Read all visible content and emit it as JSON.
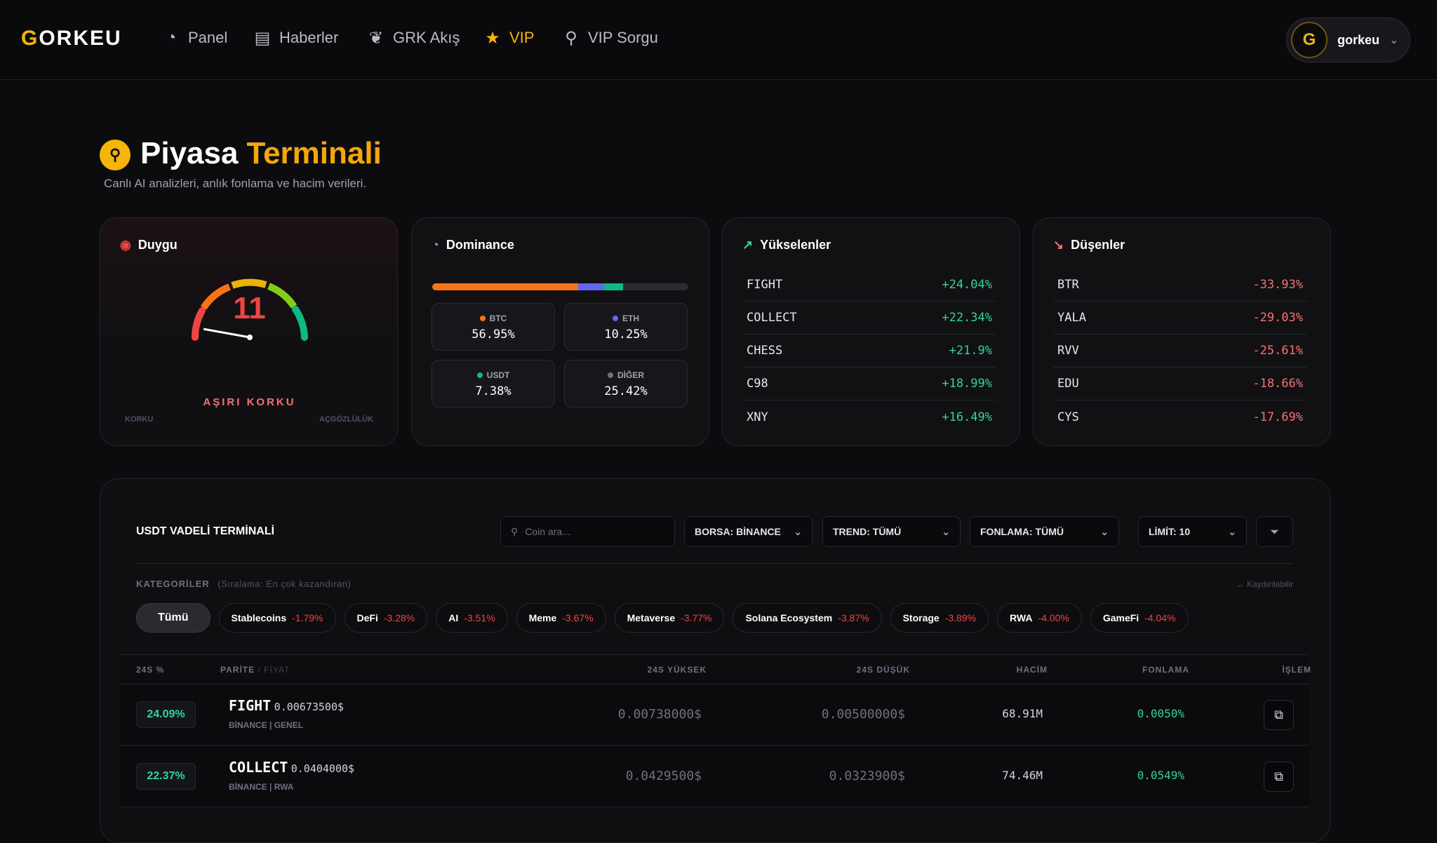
{
  "header": {
    "logo": "GORKEU",
    "nav": [
      {
        "label": "Panel",
        "icon": "pie-chart-icon"
      },
      {
        "label": "Haberler",
        "icon": "newspaper-icon"
      },
      {
        "label": "GRK Akış",
        "icon": "feather-icon"
      },
      {
        "label": "VIP",
        "icon": "star-icon"
      },
      {
        "label": "VIP Sorgu",
        "icon": "search-icon"
      }
    ],
    "user": "gorkeu"
  },
  "page": {
    "title": "Piyasa",
    "title_highlight": "Terminali",
    "subtitle": "Canlı AI analizleri, anlık fonlama ve hacim verileri."
  },
  "sentiment": {
    "title": "Duygu",
    "value": "11",
    "fraction": 0.11,
    "label": "AŞIRI KORKU",
    "min_label": "KORKU",
    "max_label": "AÇGÖZLÜLÜK"
  },
  "dominance": {
    "title": "Dominance",
    "items": [
      {
        "label": "BTC",
        "value": "56.95%",
        "pct": 56.95,
        "color": "#f97316"
      },
      {
        "label": "ETH",
        "value": "10.25%",
        "pct": 10.25,
        "color": "#6366f1"
      },
      {
        "label": "USDT",
        "value": "7.38%",
        "pct": 7.38,
        "color": "#10b981"
      },
      {
        "label": "DİĞER",
        "value": "25.42%",
        "pct": 25.42,
        "color": "#6b7280"
      }
    ]
  },
  "gainers": {
    "title": "Yükselenler",
    "items": [
      {
        "s": "FIGHT",
        "v": "+24.04%"
      },
      {
        "s": "COLLECT",
        "v": "+22.34%"
      },
      {
        "s": "CHESS",
        "v": "+21.9%"
      },
      {
        "s": "C98",
        "v": "+18.99%"
      },
      {
        "s": "XNY",
        "v": "+16.49%"
      }
    ]
  },
  "losers": {
    "title": "Düşenler",
    "items": [
      {
        "s": "BTR",
        "v": "-33.93%"
      },
      {
        "s": "YALA",
        "v": "-29.03%"
      },
      {
        "s": "RVV",
        "v": "-25.61%"
      },
      {
        "s": "EDU",
        "v": "-18.66%"
      },
      {
        "s": "CYS",
        "v": "-17.69%"
      }
    ]
  },
  "terminal": {
    "title": "USDT VADELİ TERMİNALİ",
    "search_placeholder": "Coin ara...",
    "filters": [
      "BORSA: BİNANCE",
      "TREND: TÜMÜ",
      "FONLAMA: TÜMÜ",
      "LİMİT: 10"
    ],
    "categories_label": "KATEGORİLER",
    "categories_sort": "(Sıralama: En çok kazandıran)",
    "scroll_hint": "Kaydırılabilir",
    "chips": [
      {
        "name": "Tümü"
      },
      {
        "name": "Stablecoins",
        "p": "-1.79%"
      },
      {
        "name": "DeFi",
        "p": "-3.28%"
      },
      {
        "name": "AI",
        "p": "-3.51%"
      },
      {
        "name": "Meme",
        "p": "-3.67%"
      },
      {
        "name": "Metaverse",
        "p": "-3.77%"
      },
      {
        "name": "Solana Ecosystem",
        "p": "-3.87%"
      },
      {
        "name": "Storage",
        "p": "-3.89%"
      },
      {
        "name": "RWA",
        "p": "-4.00%"
      },
      {
        "name": "GameFi",
        "p": "-4.04%"
      }
    ],
    "columns": {
      "change": "24S %",
      "pair": "PARİTE",
      "price": "/ FİYAT",
      "high": "24S YÜKSEK",
      "low": "24S DÜŞÜK",
      "volume": "HACİM",
      "funding": "FONLAMA",
      "action": "İŞLEM"
    },
    "rows": [
      {
        "change": "24.09%",
        "symbol": "FIGHT",
        "price": "0.00673500$",
        "meta": "BİNANCE | GENEL",
        "high": "0.00738000$",
        "low": "0.00500000$",
        "volume": "68.91M",
        "funding": "0.0050%"
      },
      {
        "change": "22.37%",
        "symbol": "COLLECT",
        "price": "0.0404000$",
        "meta": "BİNANCE | RWA",
        "high": "0.0429500$",
        "low": "0.0323900$",
        "volume": "74.46M",
        "funding": "0.0549%"
      }
    ]
  }
}
